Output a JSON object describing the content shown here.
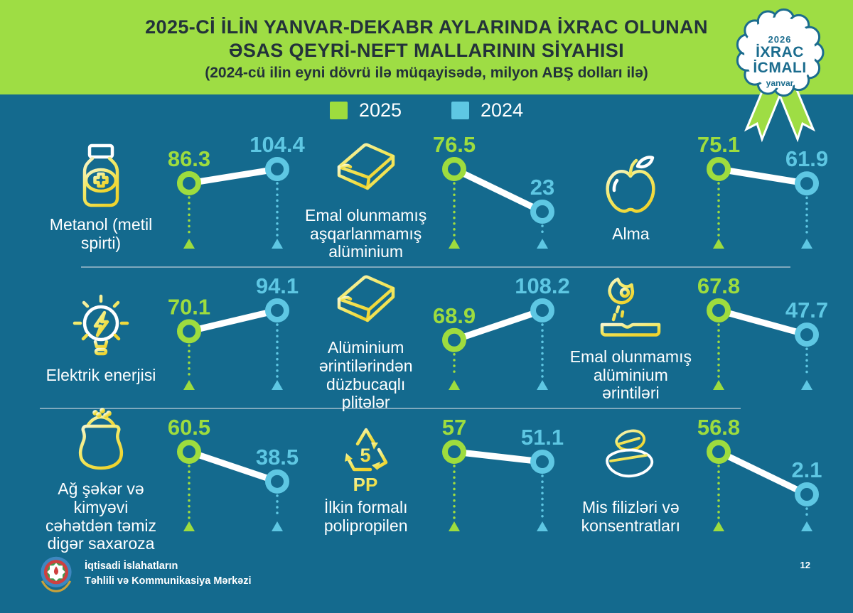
{
  "header": {
    "title_line1": "2025-Cİ İLİN YANVAR-DEKABR AYLARINDA İXRAC OLUNAN",
    "title_line2": "ƏSAS QEYRİ-NEFT MALLARININ SİYAHISI",
    "subtitle": "(2024-cü ilin eyni dövrü ilə müqayisədə, milyon ABŞ dolları ilə)",
    "badge": {
      "year": "2026",
      "line1": "İXRAC",
      "line2": "İCMALI",
      "month": "yanvar"
    }
  },
  "legend": [
    {
      "label": "2025",
      "color": "#9edc3e"
    },
    {
      "label": "2024",
      "color": "#5ec7e3"
    }
  ],
  "colors": {
    "background": "#146a8e",
    "header_green": "#9edd44",
    "title_dark": "#23323a",
    "green_2025": "#9edc3e",
    "blue_2024": "#5ec7e3",
    "white": "#ffffff",
    "badge_teal": "#1b6c8e",
    "divider": "#7fa9bd",
    "icon_yellow": "#f2e24b"
  },
  "chart_data": {
    "type": "line",
    "subtype": "slope-comparison",
    "title": "2025-ci ilin yanvar-dekabr aylarında ixrac olunan əsas qeyri-neft mallarının siyahısı",
    "unit": "milyon ABŞ dolları",
    "series_labels": [
      "2025",
      "2024"
    ],
    "legend_position": "top",
    "items": [
      {
        "label": "Metanol (metil spirti)",
        "icon": "medicine-bottle",
        "values": {
          "2025": 86.3,
          "2024": 104.4
        }
      },
      {
        "label": "Emal olunmamış aşqarlanmamış alüminium",
        "icon": "aluminium-ingot",
        "values": {
          "2025": 76.5,
          "2024": 23
        }
      },
      {
        "label": "Alma",
        "icon": "apple",
        "values": {
          "2025": 75.1,
          "2024": 61.9
        }
      },
      {
        "label": "Elektrik enerjisi",
        "icon": "light-bulb",
        "values": {
          "2025": 70.1,
          "2024": 94.1
        }
      },
      {
        "label": "Alüminium ərintilərindən düzbucaqlı plitələr",
        "icon": "aluminium-ingot",
        "values": {
          "2025": 68.9,
          "2024": 108.2
        }
      },
      {
        "label": "Emal olunmamış alüminium ərintiləri",
        "icon": "metal-casting",
        "values": {
          "2025": 67.8,
          "2024": 47.7
        }
      },
      {
        "label": "Ağ şəkər və kimyəvi cəhətdən təmiz digər saxaroza",
        "icon": "sugar-sack",
        "values": {
          "2025": 60.5,
          "2024": 38.5
        }
      },
      {
        "label": "İlkin formalı polipropilen",
        "icon": "recycling-pp",
        "values": {
          "2025": 57,
          "2024": 51.1
        }
      },
      {
        "label": "Mis filizləri və konsentratları",
        "icon": "copper-ore",
        "values": {
          "2025": 56.8,
          "2024": 2.1
        }
      }
    ]
  },
  "footer": {
    "org_line1": "İqtisadi İslahatların",
    "org_line2": "Təhlili və Kommunikasiya Mərkəzi",
    "page_number": "12"
  }
}
